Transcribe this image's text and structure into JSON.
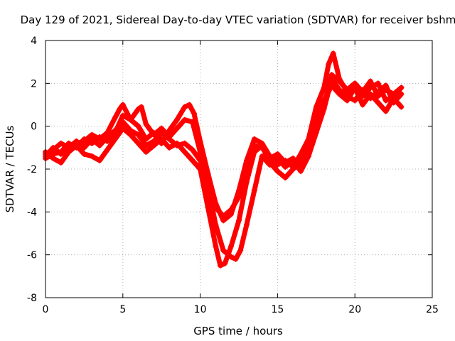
{
  "chart_data": {
    "type": "scatter",
    "title": "Day 129 of 2021, Sidereal Day-to-day VTEC variation (SDTVAR) for receiver bshm",
    "xlabel": "GPS time / hours",
    "ylabel": "SDTVAR / TECUs",
    "xlim": [
      0,
      25
    ],
    "ylim": [
      -8,
      4
    ],
    "xticks": [
      0,
      5,
      10,
      15,
      20,
      25
    ],
    "yticks": [
      -8,
      -6,
      -4,
      -2,
      0,
      2,
      4
    ],
    "xtick_labels": [
      "0",
      "5",
      "10",
      "15",
      "20",
      "25"
    ],
    "ytick_labels": [
      "-8",
      "-6",
      "-4",
      "-2",
      "0",
      "2",
      "4"
    ],
    "grid": true,
    "marker": "plus",
    "color": "#ff0000",
    "series": [
      {
        "x": [
          0.0,
          0.5,
          1.0,
          1.5,
          2.0,
          2.5,
          3.0,
          3.5,
          4.0,
          4.5,
          4.8,
          5.0,
          5.5,
          6.0,
          6.5,
          7.0,
          7.5,
          8.0,
          8.5,
          9.0,
          9.3,
          9.6,
          10.0,
          10.5,
          11.0,
          11.5,
          12.0,
          12.5,
          13.0,
          13.5,
          14.0,
          14.5,
          15.0,
          15.5,
          16.0,
          16.5,
          17.0,
          17.5,
          18.0,
          18.3,
          18.6,
          19.0,
          19.5,
          20.0,
          20.5,
          21.0,
          21.5,
          22.0,
          22.5,
          23.0
        ],
        "y": [
          -1.4,
          -1.0,
          -1.3,
          -0.9,
          -0.8,
          -0.7,
          -0.4,
          -0.6,
          -0.3,
          0.4,
          0.8,
          1.0,
          0.3,
          0.0,
          -0.6,
          -0.3,
          -0.8,
          -0.2,
          0.3,
          0.9,
          1.0,
          0.6,
          -0.7,
          -2.2,
          -3.6,
          -4.4,
          -4.1,
          -3.0,
          -1.6,
          -0.6,
          -0.8,
          -1.4,
          -1.8,
          -1.6,
          -1.9,
          -1.3,
          -0.6,
          0.9,
          1.8,
          2.9,
          3.4,
          2.2,
          1.6,
          2.0,
          1.4,
          1.8,
          2.0,
          1.2,
          1.4,
          1.8
        ]
      },
      {
        "x": [
          0.0,
          0.5,
          1.0,
          1.5,
          2.0,
          2.5,
          3.0,
          3.5,
          4.0,
          4.5,
          5.0,
          5.5,
          6.0,
          6.5,
          7.0,
          7.5,
          8.0,
          8.5,
          9.0,
          9.5,
          10.0,
          10.5,
          11.0,
          11.3,
          11.6,
          12.0,
          12.5,
          13.0,
          13.5,
          14.0,
          14.5,
          15.0,
          15.5,
          16.0,
          16.5,
          17.0,
          17.5,
          18.0,
          18.5,
          19.0,
          19.5,
          20.0,
          20.5,
          21.0,
          21.5,
          22.0,
          22.5,
          23.0
        ],
        "y": [
          -1.2,
          -1.5,
          -1.7,
          -1.2,
          -0.9,
          -1.3,
          -1.4,
          -1.6,
          -1.1,
          -0.6,
          -0.1,
          -0.4,
          -0.8,
          -1.2,
          -0.9,
          -0.6,
          -1.0,
          -0.8,
          -1.2,
          -1.6,
          -2.0,
          -3.8,
          -5.6,
          -6.5,
          -6.4,
          -5.6,
          -4.4,
          -2.6,
          -1.2,
          -0.9,
          -1.7,
          -2.1,
          -2.4,
          -2.0,
          -1.7,
          -0.9,
          0.3,
          1.2,
          1.9,
          1.5,
          1.2,
          1.8,
          1.0,
          1.5,
          1.1,
          0.7,
          1.3,
          0.9
        ]
      },
      {
        "x": [
          0.0,
          0.5,
          1.0,
          1.5,
          2.0,
          2.5,
          3.0,
          3.5,
          4.0,
          4.5,
          5.0,
          5.5,
          6.0,
          6.5,
          7.0,
          7.5,
          8.0,
          8.5,
          9.0,
          9.5,
          10.0,
          10.5,
          11.0,
          11.5,
          12.0,
          12.3,
          12.6,
          13.0,
          13.5,
          14.0,
          14.5,
          15.0,
          15.5,
          16.0,
          16.5,
          17.0,
          17.5,
          18.0,
          18.5,
          19.0,
          19.5,
          20.0,
          20.5,
          21.0,
          21.5,
          22.0,
          22.5,
          23.0
        ],
        "y": [
          -1.3,
          -1.1,
          -0.8,
          -1.0,
          -0.7,
          -1.0,
          -0.6,
          -0.9,
          -0.5,
          -0.2,
          0.2,
          -0.2,
          -0.4,
          -0.9,
          -0.7,
          -0.3,
          -0.6,
          -0.9,
          -0.8,
          -1.1,
          -1.6,
          -2.8,
          -4.6,
          -5.8,
          -6.1,
          -6.2,
          -5.8,
          -4.6,
          -3.0,
          -1.4,
          -1.8,
          -1.5,
          -1.9,
          -1.6,
          -2.1,
          -1.4,
          -0.3,
          0.8,
          2.2,
          1.7,
          1.4,
          1.2,
          1.7,
          1.3,
          1.6,
          1.9,
          1.1,
          1.5
        ]
      },
      {
        "x": [
          0.0,
          0.5,
          1.0,
          1.5,
          2.0,
          2.5,
          3.0,
          3.5,
          4.0,
          4.5,
          5.0,
          5.5,
          6.0,
          6.2,
          6.5,
          7.0,
          7.5,
          8.0,
          8.5,
          9.0,
          9.5,
          10.0,
          10.5,
          11.0,
          11.5,
          12.0,
          12.5,
          13.0,
          13.5,
          14.0,
          14.5,
          15.0,
          15.5,
          16.0,
          16.5,
          17.0,
          17.5,
          18.0,
          18.5,
          19.0,
          19.5,
          20.0,
          20.5,
          21.0,
          21.5,
          22.0,
          22.5,
          23.0
        ],
        "y": [
          -1.5,
          -1.3,
          -1.2,
          -0.8,
          -1.0,
          -0.6,
          -0.8,
          -0.5,
          -0.7,
          -0.3,
          0.5,
          0.3,
          0.8,
          0.9,
          0.1,
          -0.4,
          -0.1,
          -0.5,
          -0.1,
          0.3,
          0.2,
          -1.2,
          -2.6,
          -3.8,
          -4.2,
          -3.9,
          -3.3,
          -2.2,
          -0.9,
          -1.0,
          -1.5,
          -1.3,
          -1.7,
          -1.5,
          -1.9,
          -1.2,
          -0.2,
          1.0,
          2.4,
          2.1,
          1.7,
          2.0,
          1.6,
          2.1,
          1.4,
          1.7,
          1.5,
          1.8
        ]
      }
    ]
  }
}
